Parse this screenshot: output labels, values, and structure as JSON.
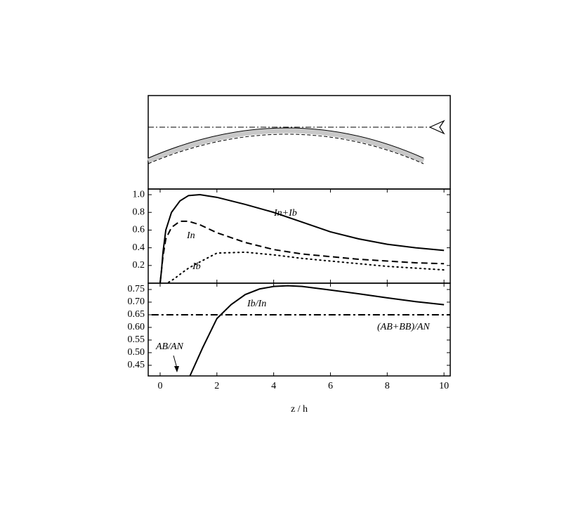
{
  "chart_data": [
    {
      "type": "line",
      "xlim": [
        -0.42,
        10.22
      ],
      "ylim": [
        0,
        1.064
      ],
      "yticks": [
        0.2,
        0.4,
        0.6,
        0.8,
        {
          "value": 1,
          "label": "1.0"
        }
      ],
      "series": [
        {
          "name": "In+Ib",
          "color": "#000000",
          "style": "solid",
          "x": [
            0,
            0.05,
            0.1,
            0.2,
            0.4,
            0.7,
            1.0,
            1.4,
            2,
            3,
            4,
            5,
            6,
            7,
            8,
            9,
            10
          ],
          "values": [
            0,
            0.15,
            0.35,
            0.6,
            0.8,
            0.93,
            0.99,
            1.0,
            0.97,
            0.89,
            0.8,
            0.69,
            0.58,
            0.5,
            0.44,
            0.4,
            0.37
          ]
        },
        {
          "name": "In",
          "color": "#000000",
          "style": "dashed",
          "x": [
            0,
            0.05,
            0.1,
            0.2,
            0.4,
            0.7,
            1.0,
            1.4,
            2,
            3,
            4,
            5,
            6,
            7,
            8,
            9,
            10
          ],
          "values": [
            0,
            0.15,
            0.3,
            0.5,
            0.63,
            0.7,
            0.7,
            0.66,
            0.57,
            0.46,
            0.38,
            0.33,
            0.3,
            0.27,
            0.25,
            0.23,
            0.22
          ]
        },
        {
          "name": "Ib",
          "color": "#000000",
          "style": "dotted",
          "x": [
            0.3,
            0.5,
            0.7,
            1.0,
            1.4,
            2,
            3,
            4,
            5,
            6,
            7,
            8,
            9,
            10
          ],
          "values": [
            0.01,
            0.05,
            0.1,
            0.17,
            0.24,
            0.34,
            0.35,
            0.32,
            0.28,
            0.25,
            0.22,
            0.19,
            0.17,
            0.15
          ]
        }
      ]
    },
    {
      "type": "line",
      "xlim": [
        -0.42,
        10.22
      ],
      "ylim": [
        0.408,
        0.775
      ],
      "xticks": [
        0,
        2,
        4,
        6,
        8,
        10
      ],
      "yticks": [
        0.45,
        {
          "value": 0.5,
          "label": "0.50"
        },
        0.55,
        {
          "value": 0.6,
          "label": "0.60"
        },
        0.65,
        {
          "value": 0.7,
          "label": "0.70"
        },
        0.75
      ],
      "xlabel": "z / h",
      "series": [
        {
          "name": "Ib/In",
          "color": "#000000",
          "style": "solid",
          "x": [
            1.05,
            1.5,
            2,
            2.5,
            3,
            3.5,
            4,
            4.5,
            5,
            6,
            7,
            8,
            9,
            10
          ],
          "values": [
            0.408,
            0.52,
            0.635,
            0.69,
            0.73,
            0.752,
            0.762,
            0.765,
            0.762,
            0.748,
            0.733,
            0.717,
            0.702,
            0.69
          ]
        },
        {
          "name": "(AB+BB)/AN",
          "color": "#000000",
          "style": "dashdot",
          "x": [
            -0.3,
            10.22
          ],
          "values": [
            0.65,
            0.65
          ]
        }
      ],
      "annotations": [
        {
          "text": "AB/AN"
        }
      ]
    }
  ]
}
